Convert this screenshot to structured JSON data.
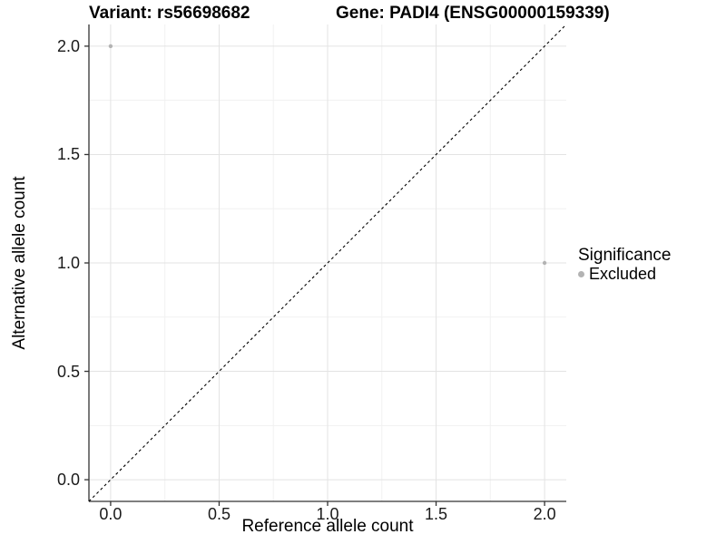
{
  "figure": {
    "title_left": "Variant: rs56698682",
    "title_right": "Gene: PADI4 (ENSG00000159339)"
  },
  "chart_data": {
    "type": "scatter",
    "title": "Variant: rs56698682    Gene: PADI4 (ENSG00000159339)",
    "xlabel": "Reference allele count",
    "ylabel": "Alternative allele count",
    "xlim": [
      -0.1,
      2.1
    ],
    "ylim": [
      -0.1,
      2.1
    ],
    "x_ticks": [
      0.0,
      0.5,
      1.0,
      1.5,
      2.0
    ],
    "y_ticks": [
      0.0,
      0.5,
      1.0,
      1.5,
      2.0
    ],
    "minor_ticks": [
      0.25,
      0.75,
      1.25,
      1.75
    ],
    "tick_format_decimals": 1,
    "grid": true,
    "series": [
      {
        "name": "Excluded",
        "color": "#b3b3b3",
        "points": [
          {
            "x": 0.0,
            "y": 2.0
          },
          {
            "x": 2.0,
            "y": 1.0
          }
        ]
      }
    ],
    "reference_line": {
      "equation": "y = x",
      "style": "dashed",
      "color": "#000000",
      "from": [
        -0.1,
        -0.1
      ],
      "to": [
        2.1,
        2.1
      ]
    },
    "legend": {
      "title": "Significance",
      "position": "right",
      "items": [
        {
          "label": "Excluded",
          "color": "#b3b3b3"
        }
      ]
    }
  },
  "colors": {
    "background": "#ffffff",
    "grid_major": "#e3e3e3",
    "grid_minor": "#f1f1f1",
    "axis_line": "#333333",
    "tick_mark": "#333333",
    "point": "#b3b3b3"
  }
}
